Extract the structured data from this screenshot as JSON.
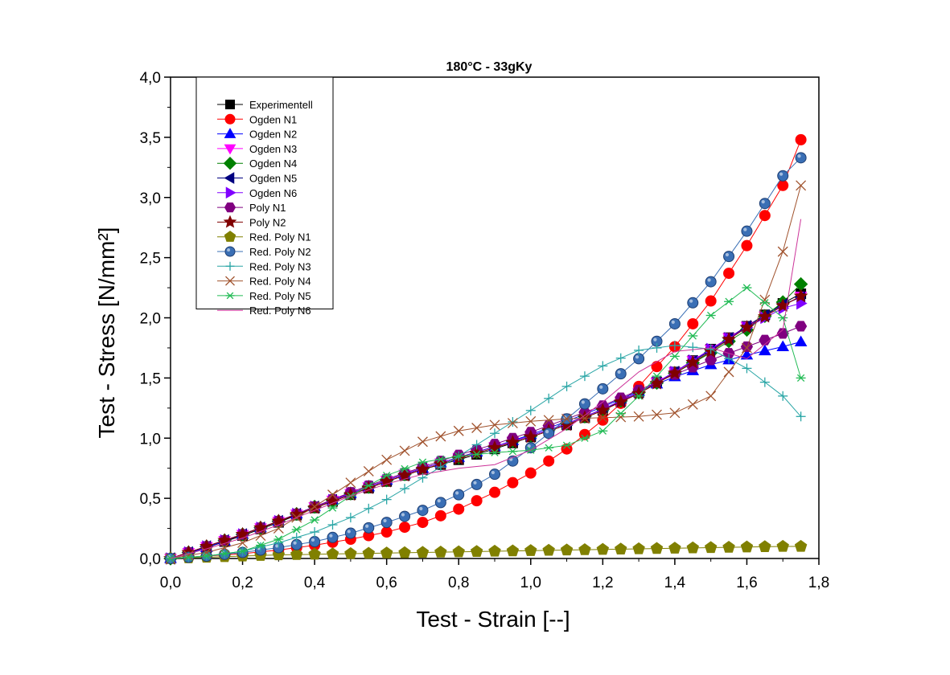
{
  "chart_data": {
    "type": "scatter",
    "title": "180°C - 33gKy",
    "xlabel": "Test - Strain [--]",
    "ylabel": "Test - Stress [N/mm²]",
    "xlim": [
      0,
      1.8
    ],
    "ylim": [
      0,
      4.0
    ],
    "x_ticks": [
      "0,0",
      "0,2",
      "0,4",
      "0,6",
      "0,8",
      "1,0",
      "1,2",
      "1,4",
      "1,6",
      "1,8"
    ],
    "y_ticks": [
      "0,0",
      "0,5",
      "1,0",
      "1,5",
      "2,0",
      "2,5",
      "3,0",
      "3,5",
      "4,0"
    ],
    "grid": false,
    "legend_position": "top-left",
    "series": [
      {
        "name": "Experimentell",
        "color": "#000000",
        "marker": "square",
        "x": [
          0.0,
          0.1,
          0.2,
          0.3,
          0.4,
          0.5,
          0.6,
          0.7,
          0.8,
          0.9,
          1.0,
          1.1,
          1.2,
          1.3,
          1.4,
          1.5,
          1.6,
          1.7,
          1.75
        ],
        "y": [
          0.0,
          0.09,
          0.19,
          0.3,
          0.42,
          0.53,
          0.64,
          0.74,
          0.82,
          0.91,
          1.01,
          1.11,
          1.23,
          1.38,
          1.55,
          1.74,
          1.93,
          2.12,
          2.2
        ]
      },
      {
        "name": "Ogden N1",
        "color": "#ff0000",
        "marker": "circle",
        "x": [
          0.0,
          0.1,
          0.2,
          0.3,
          0.4,
          0.5,
          0.6,
          0.7,
          0.8,
          0.9,
          1.0,
          1.1,
          1.2,
          1.3,
          1.4,
          1.5,
          1.6,
          1.7,
          1.75
        ],
        "y": [
          0.0,
          0.02,
          0.04,
          0.07,
          0.11,
          0.16,
          0.22,
          0.3,
          0.41,
          0.55,
          0.71,
          0.91,
          1.15,
          1.43,
          1.76,
          2.14,
          2.6,
          3.1,
          3.48
        ]
      },
      {
        "name": "Ogden N2",
        "color": "#0000ff",
        "marker": "triangle-up",
        "x": [
          0.0,
          0.1,
          0.2,
          0.3,
          0.4,
          0.5,
          0.6,
          0.7,
          0.8,
          0.9,
          1.0,
          1.1,
          1.2,
          1.3,
          1.4,
          1.5,
          1.6,
          1.7,
          1.75
        ],
        "y": [
          0.0,
          0.09,
          0.2,
          0.31,
          0.43,
          0.54,
          0.65,
          0.75,
          0.84,
          0.93,
          1.03,
          1.14,
          1.26,
          1.39,
          1.51,
          1.61,
          1.69,
          1.76,
          1.8
        ]
      },
      {
        "name": "Ogden N3",
        "color": "#ff00ff",
        "marker": "triangle-down",
        "x": [
          0.0,
          0.1,
          0.2,
          0.3,
          0.4,
          0.5,
          0.6,
          0.7,
          0.8,
          0.9,
          1.0,
          1.1,
          1.2,
          1.3,
          1.4,
          1.5,
          1.6,
          1.7,
          1.75
        ],
        "y": [
          0.0,
          0.1,
          0.2,
          0.31,
          0.43,
          0.54,
          0.65,
          0.75,
          0.84,
          0.93,
          1.02,
          1.12,
          1.24,
          1.38,
          1.55,
          1.74,
          1.93,
          2.1,
          2.18
        ]
      },
      {
        "name": "Ogden N4",
        "color": "#008000",
        "marker": "diamond",
        "x": [
          0.0,
          0.1,
          0.2,
          0.3,
          0.4,
          0.5,
          0.6,
          0.7,
          0.8,
          0.9,
          1.0,
          1.1,
          1.2,
          1.3,
          1.4,
          1.5,
          1.6,
          1.7,
          1.75
        ],
        "y": [
          0.0,
          0.1,
          0.2,
          0.31,
          0.43,
          0.54,
          0.65,
          0.75,
          0.84,
          0.93,
          1.02,
          1.12,
          1.24,
          1.38,
          1.54,
          1.71,
          1.9,
          2.13,
          2.28
        ]
      },
      {
        "name": "Ogden N5",
        "color": "#000080",
        "marker": "triangle-left",
        "x": [
          0.0,
          0.1,
          0.2,
          0.3,
          0.4,
          0.5,
          0.6,
          0.7,
          0.8,
          0.9,
          1.0,
          1.1,
          1.2,
          1.3,
          1.4,
          1.5,
          1.6,
          1.7,
          1.75
        ],
        "y": [
          0.0,
          0.1,
          0.2,
          0.31,
          0.43,
          0.54,
          0.65,
          0.75,
          0.84,
          0.93,
          1.02,
          1.12,
          1.24,
          1.38,
          1.55,
          1.73,
          1.93,
          2.11,
          2.17
        ]
      },
      {
        "name": "Ogden N6",
        "color": "#8000ff",
        "marker": "triangle-right",
        "x": [
          0.0,
          0.1,
          0.2,
          0.3,
          0.4,
          0.5,
          0.6,
          0.7,
          0.8,
          0.9,
          1.0,
          1.1,
          1.2,
          1.3,
          1.4,
          1.5,
          1.6,
          1.7,
          1.75
        ],
        "y": [
          0.0,
          0.1,
          0.2,
          0.31,
          0.43,
          0.54,
          0.65,
          0.75,
          0.84,
          0.93,
          1.02,
          1.12,
          1.24,
          1.38,
          1.55,
          1.74,
          1.92,
          2.08,
          2.12
        ]
      },
      {
        "name": "Poly N1",
        "color": "#800080",
        "marker": "hexagon",
        "x": [
          0.0,
          0.1,
          0.2,
          0.3,
          0.4,
          0.5,
          0.6,
          0.7,
          0.8,
          0.9,
          1.0,
          1.1,
          1.2,
          1.3,
          1.4,
          1.5,
          1.6,
          1.7,
          1.75
        ],
        "y": [
          0.0,
          0.1,
          0.2,
          0.31,
          0.43,
          0.55,
          0.66,
          0.76,
          0.86,
          0.95,
          1.05,
          1.16,
          1.27,
          1.4,
          1.53,
          1.65,
          1.76,
          1.87,
          1.93
        ]
      },
      {
        "name": "Poly N2",
        "color": "#800000",
        "marker": "star",
        "x": [
          0.0,
          0.1,
          0.2,
          0.3,
          0.4,
          0.5,
          0.6,
          0.7,
          0.8,
          0.9,
          1.0,
          1.1,
          1.2,
          1.3,
          1.4,
          1.5,
          1.6,
          1.7,
          1.75
        ],
        "y": [
          0.0,
          0.1,
          0.2,
          0.31,
          0.42,
          0.53,
          0.64,
          0.74,
          0.83,
          0.92,
          1.01,
          1.11,
          1.23,
          1.37,
          1.54,
          1.72,
          1.92,
          2.1,
          2.18
        ]
      },
      {
        "name": "Red. Poly N1",
        "color": "#808000",
        "marker": "pentagon",
        "x": [
          0.0,
          0.1,
          0.2,
          0.3,
          0.4,
          0.5,
          0.6,
          0.7,
          0.8,
          0.9,
          1.0,
          1.1,
          1.2,
          1.3,
          1.4,
          1.5,
          1.6,
          1.7,
          1.75
        ],
        "y": [
          0.0,
          0.01,
          0.02,
          0.03,
          0.035,
          0.04,
          0.045,
          0.05,
          0.055,
          0.06,
          0.065,
          0.07,
          0.075,
          0.08,
          0.085,
          0.09,
          0.095,
          0.1,
          0.1
        ]
      },
      {
        "name": "Red. Poly N2",
        "color": "#3a6fb5",
        "marker": "sphere",
        "x": [
          0.0,
          0.1,
          0.2,
          0.3,
          0.4,
          0.5,
          0.6,
          0.7,
          0.8,
          0.9,
          1.0,
          1.1,
          1.2,
          1.3,
          1.4,
          1.5,
          1.6,
          1.7,
          1.75
        ],
        "y": [
          0.0,
          0.02,
          0.05,
          0.09,
          0.14,
          0.21,
          0.3,
          0.4,
          0.53,
          0.7,
          0.92,
          1.16,
          1.41,
          1.66,
          1.95,
          2.3,
          2.72,
          3.18,
          3.33
        ]
      },
      {
        "name": "Red. Poly N3",
        "color": "#2aa6a6",
        "marker": "plus",
        "x": [
          0.0,
          0.1,
          0.2,
          0.3,
          0.4,
          0.5,
          0.6,
          0.7,
          0.8,
          0.9,
          1.0,
          1.1,
          1.2,
          1.3,
          1.4,
          1.5,
          1.6,
          1.7,
          1.75
        ],
        "y": [
          0.0,
          0.02,
          0.06,
          0.13,
          0.22,
          0.34,
          0.49,
          0.67,
          0.85,
          1.04,
          1.23,
          1.43,
          1.6,
          1.73,
          1.77,
          1.74,
          1.58,
          1.35,
          1.18
        ]
      },
      {
        "name": "Red. Poly N4",
        "color": "#a0522d",
        "marker": "cross",
        "x": [
          0.0,
          0.1,
          0.2,
          0.3,
          0.4,
          0.5,
          0.6,
          0.7,
          0.8,
          0.9,
          1.0,
          1.1,
          1.2,
          1.3,
          1.4,
          1.5,
          1.6,
          1.7,
          1.75
        ],
        "y": [
          0.0,
          0.05,
          0.13,
          0.25,
          0.43,
          0.63,
          0.82,
          0.97,
          1.06,
          1.11,
          1.14,
          1.16,
          1.17,
          1.18,
          1.21,
          1.35,
          1.75,
          2.55,
          3.1
        ]
      },
      {
        "name": "Red. Poly N5",
        "color": "#22bb55",
        "marker": "asterisk",
        "x": [
          0.0,
          0.1,
          0.2,
          0.3,
          0.4,
          0.5,
          0.6,
          0.7,
          0.8,
          0.9,
          1.0,
          1.1,
          1.2,
          1.3,
          1.4,
          1.5,
          1.6,
          1.7,
          1.75
        ],
        "y": [
          0.0,
          0.02,
          0.06,
          0.16,
          0.32,
          0.52,
          0.69,
          0.8,
          0.85,
          0.88,
          0.9,
          0.94,
          1.06,
          1.35,
          1.68,
          2.02,
          2.25,
          2.0,
          1.5
        ]
      },
      {
        "name": "Red. Poly N6",
        "color": "#cc3399",
        "marker": "none",
        "x": [
          0.0,
          0.1,
          0.2,
          0.3,
          0.4,
          0.5,
          0.6,
          0.7,
          0.8,
          0.9,
          1.0,
          1.1,
          1.2,
          1.3,
          1.4,
          1.5,
          1.6,
          1.7,
          1.75
        ],
        "y": [
          0.0,
          0.08,
          0.17,
          0.28,
          0.4,
          0.52,
          0.62,
          0.7,
          0.75,
          0.78,
          0.9,
          1.08,
          1.3,
          1.55,
          1.72,
          1.75,
          1.66,
          1.9,
          2.82
        ]
      }
    ]
  }
}
